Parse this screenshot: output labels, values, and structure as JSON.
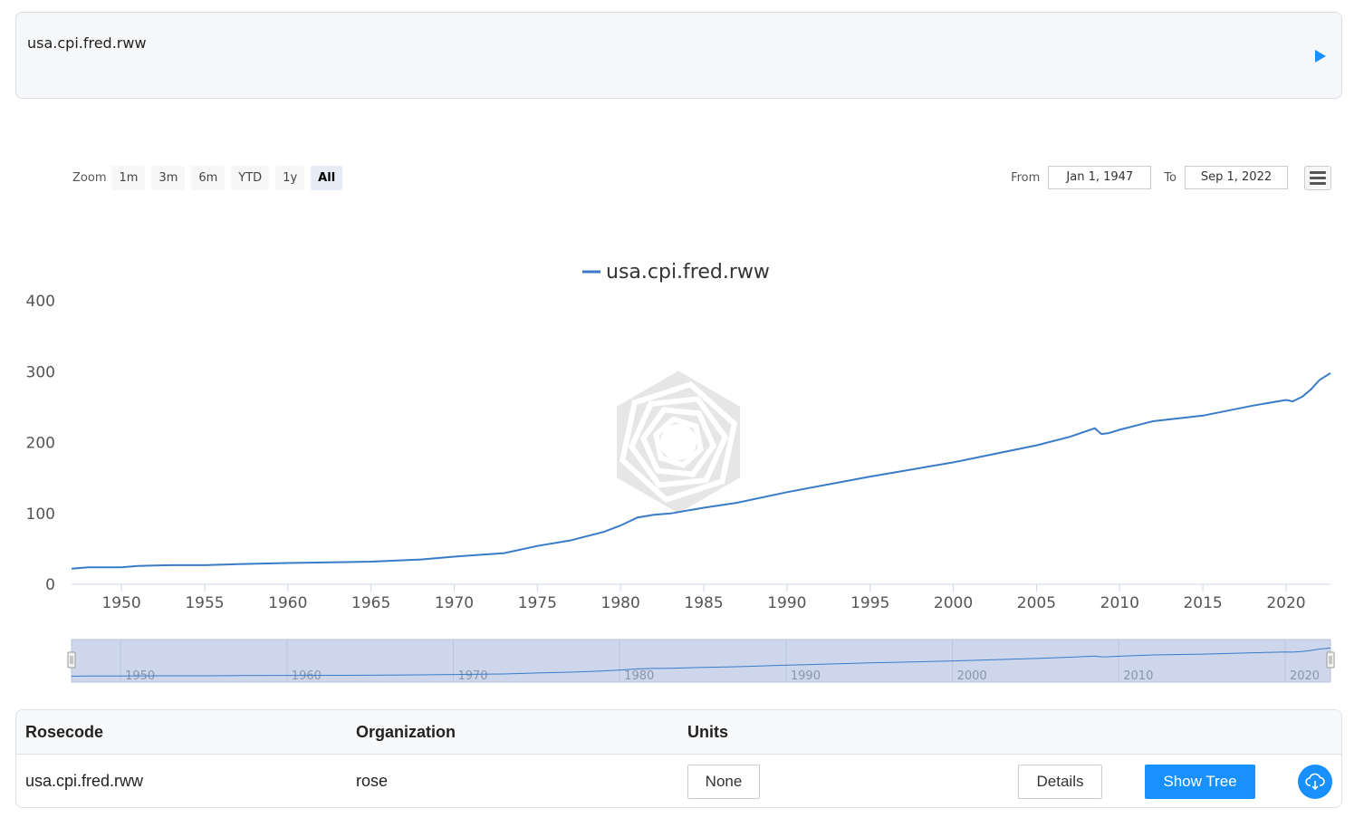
{
  "query": {
    "text": "usa.cpi.fred.rww"
  },
  "range_selector": {
    "zoom_label": "Zoom",
    "buttons": [
      "1m",
      "3m",
      "6m",
      "YTD",
      "1y",
      "All"
    ],
    "active": "All",
    "from_label": "From",
    "from_value": "Jan 1, 1947",
    "to_label": "To",
    "to_value": "Sep 1, 2022"
  },
  "icons": {
    "run": "play-icon",
    "menu": "hamburger-menu-icon",
    "download": "cloud-download-icon",
    "watermark": "rose-logo-icon"
  },
  "colors": {
    "series": "#3a7bc8",
    "navigator_fill": "#cdd6ea",
    "primary": "#1890ff"
  },
  "chart_data": {
    "type": "line",
    "series": [
      {
        "name": "usa.cpi.fred.rww",
        "x": [
          1947,
          1948,
          1949,
          1950,
          1951,
          1952,
          1953,
          1955,
          1957,
          1960,
          1965,
          1968,
          1970,
          1973,
          1975,
          1977,
          1979,
          1980,
          1981,
          1982,
          1983,
          1985,
          1987,
          1990,
          1995,
          2000,
          2005,
          2007,
          2008.5,
          2008.9,
          2009.3,
          2010,
          2012,
          2015,
          2018,
          2020,
          2020.4,
          2021,
          2021.5,
          2022,
          2022.67
        ],
        "y": [
          22,
          24,
          24,
          24,
          26,
          26.5,
          27,
          27,
          28.5,
          30,
          32,
          35,
          39,
          44,
          54,
          62,
          74,
          83,
          94,
          98,
          100,
          108,
          115,
          130,
          152,
          172,
          196,
          208,
          220,
          212,
          213,
          218,
          230,
          238,
          252,
          260,
          258,
          265,
          275,
          288,
          298
        ]
      }
    ],
    "x_ticks": [
      "1950",
      "1955",
      "1960",
      "1965",
      "1970",
      "1975",
      "1980",
      "1985",
      "1990",
      "1995",
      "2000",
      "2005",
      "2010",
      "2015",
      "2020"
    ],
    "y_ticks": [
      "0",
      "100",
      "200",
      "300",
      "400"
    ],
    "xlim": [
      1947,
      2022.67
    ],
    "ylim": [
      0,
      400
    ],
    "legend": "top-center",
    "navigator_ticks": [
      "1950",
      "1960",
      "1970",
      "1980",
      "1990",
      "2000",
      "2010",
      "2020"
    ]
  },
  "table": {
    "headers": [
      "Rosecode",
      "Organization",
      "Units"
    ],
    "row": {
      "rosecode": "usa.cpi.fred.rww",
      "organization": "rose",
      "units": "None"
    },
    "details_label": "Details",
    "show_tree_label": "Show Tree"
  }
}
